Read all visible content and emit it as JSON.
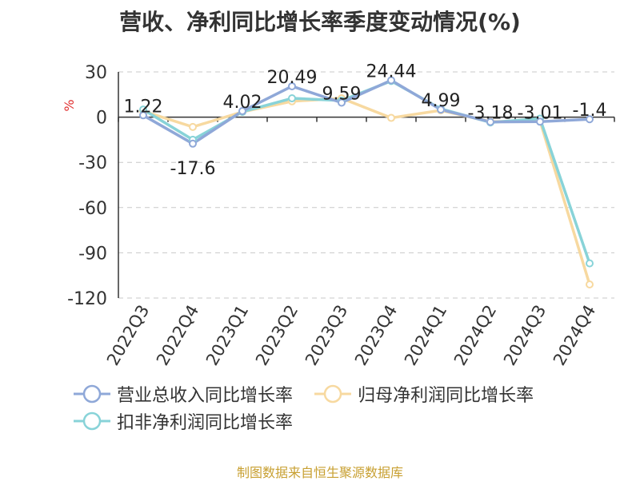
{
  "chart_data": {
    "type": "line",
    "title": "营收、净利同比增长率季度变动情况(%)",
    "ylabel": "%",
    "xlabel": "",
    "categories": [
      "2022Q3",
      "2022Q4",
      "2023Q1",
      "2023Q2",
      "2023Q3",
      "2023Q4",
      "2024Q1",
      "2024Q2",
      "2024Q3",
      "2024Q4"
    ],
    "ylim": [
      -120,
      30
    ],
    "yticks": [
      "30",
      "0",
      "-30",
      "-60",
      "-90",
      "-120"
    ],
    "grid": true,
    "legend_position": "bottom",
    "series": [
      {
        "name": "营业总收入同比增长率",
        "color": "#8fa8d8",
        "values": [
          1.22,
          -17.6,
          4.02,
          20.49,
          9.59,
          24.44,
          4.99,
          -3.18,
          -3.01,
          -1.4
        ],
        "labels": [
          "1.22",
          "-17.6",
          "4.02",
          "20.49",
          "9.59",
          "24.44",
          "4.99",
          "-3.18",
          "-3.01",
          "-1.4"
        ]
      },
      {
        "name": "归母净利润同比增长率",
        "color": "#f7d9a0",
        "values": [
          4,
          -6.5,
          3.5,
          10.5,
          12.5,
          -0.5,
          4.5,
          -3,
          -2.5,
          -111
        ],
        "labels": []
      },
      {
        "name": "扣非净利润同比增长率",
        "color": "#88d3d8",
        "values": [
          5,
          -15,
          3.5,
          12.5,
          11,
          24,
          5.5,
          -3.5,
          -1,
          -97
        ],
        "labels": []
      }
    ]
  },
  "source": "制图数据来自恒生聚源数据库"
}
